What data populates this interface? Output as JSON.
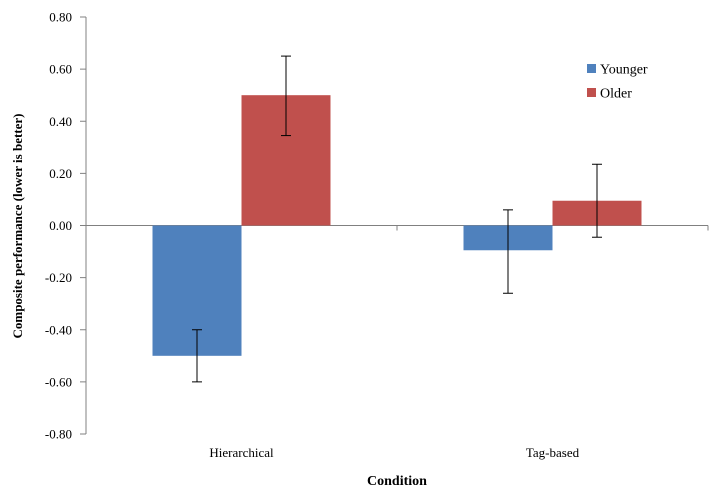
{
  "chart_data": {
    "type": "bar",
    "xlabel": "Condition",
    "ylabel": "Composite performance (lower is better)",
    "categories": [
      "Hierarchical",
      "Tag-based"
    ],
    "ylim": [
      -0.8,
      0.8
    ],
    "yticks": [
      0.8,
      0.6,
      0.4,
      0.2,
      0.0,
      -0.2,
      -0.4,
      -0.6,
      -0.8
    ],
    "ytick_labels": [
      "0.80",
      "0.60",
      "0.40",
      "0.20",
      "0.00",
      "-0.20",
      "-0.40",
      "-0.60",
      "-0.80"
    ],
    "series": [
      {
        "name": "Younger",
        "color": "#4F81BD",
        "values": [
          -0.5,
          -0.095
        ],
        "err_low": [
          -0.6,
          -0.26
        ],
        "err_high": [
          -0.4,
          0.06
        ]
      },
      {
        "name": "Older",
        "color": "#C0504D",
        "values": [
          0.5,
          0.095
        ],
        "err_low": [
          0.345,
          -0.045
        ],
        "err_high": [
          0.65,
          0.235
        ]
      }
    ],
    "legend_position": "top-right",
    "grid": false
  }
}
